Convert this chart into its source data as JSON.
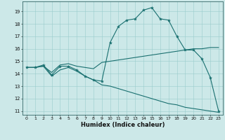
{
  "bg_color": "#cce8e8",
  "line_color": "#1a7070",
  "grid_color": "#99cccc",
  "xlabel": "Humidex (Indice chaleur)",
  "xlim_min": -0.5,
  "xlim_max": 23.5,
  "ylim_min": 10.7,
  "ylim_max": 19.8,
  "yticks": [
    11,
    12,
    13,
    14,
    15,
    16,
    17,
    18,
    19
  ],
  "xticks": [
    0,
    1,
    2,
    3,
    4,
    5,
    6,
    7,
    8,
    9,
    10,
    11,
    12,
    13,
    14,
    15,
    16,
    17,
    18,
    19,
    20,
    21,
    22,
    23
  ],
  "line1_x": [
    0,
    1,
    2,
    3,
    4,
    5,
    6,
    7,
    8,
    9,
    10,
    11,
    12,
    13,
    14,
    15,
    16,
    17,
    18,
    19,
    20,
    21,
    22,
    23
  ],
  "line1_y": [
    14.5,
    14.5,
    14.7,
    13.9,
    14.6,
    14.6,
    14.3,
    13.8,
    13.5,
    13.4,
    16.5,
    17.8,
    18.3,
    18.4,
    19.1,
    19.3,
    18.4,
    18.3,
    17.0,
    15.9,
    15.9,
    15.2,
    13.7,
    11.0
  ],
  "line2_x": [
    0,
    1,
    2,
    3,
    4,
    5,
    6,
    7,
    8,
    9,
    10,
    11,
    12,
    13,
    14,
    15,
    16,
    17,
    18,
    19,
    20,
    21,
    22,
    23
  ],
  "line2_y": [
    14.5,
    14.5,
    14.6,
    14.1,
    14.7,
    14.8,
    14.6,
    14.5,
    14.4,
    14.9,
    15.0,
    15.1,
    15.2,
    15.3,
    15.4,
    15.5,
    15.6,
    15.7,
    15.8,
    15.9,
    16.0,
    16.0,
    16.1,
    16.1
  ],
  "line3_x": [
    0,
    1,
    2,
    3,
    4,
    5,
    6,
    7,
    8,
    9,
    10,
    11,
    12,
    13,
    14,
    15,
    16,
    17,
    18,
    19,
    20,
    21,
    22,
    23
  ],
  "line3_y": [
    14.5,
    14.5,
    14.6,
    13.8,
    14.3,
    14.5,
    14.2,
    13.8,
    13.5,
    13.1,
    13.0,
    12.8,
    12.6,
    12.4,
    12.2,
    12.0,
    11.8,
    11.6,
    11.5,
    11.3,
    11.2,
    11.1,
    11.0,
    10.9
  ],
  "tick_fontsize": 4.5,
  "xlabel_fontsize": 6.0
}
